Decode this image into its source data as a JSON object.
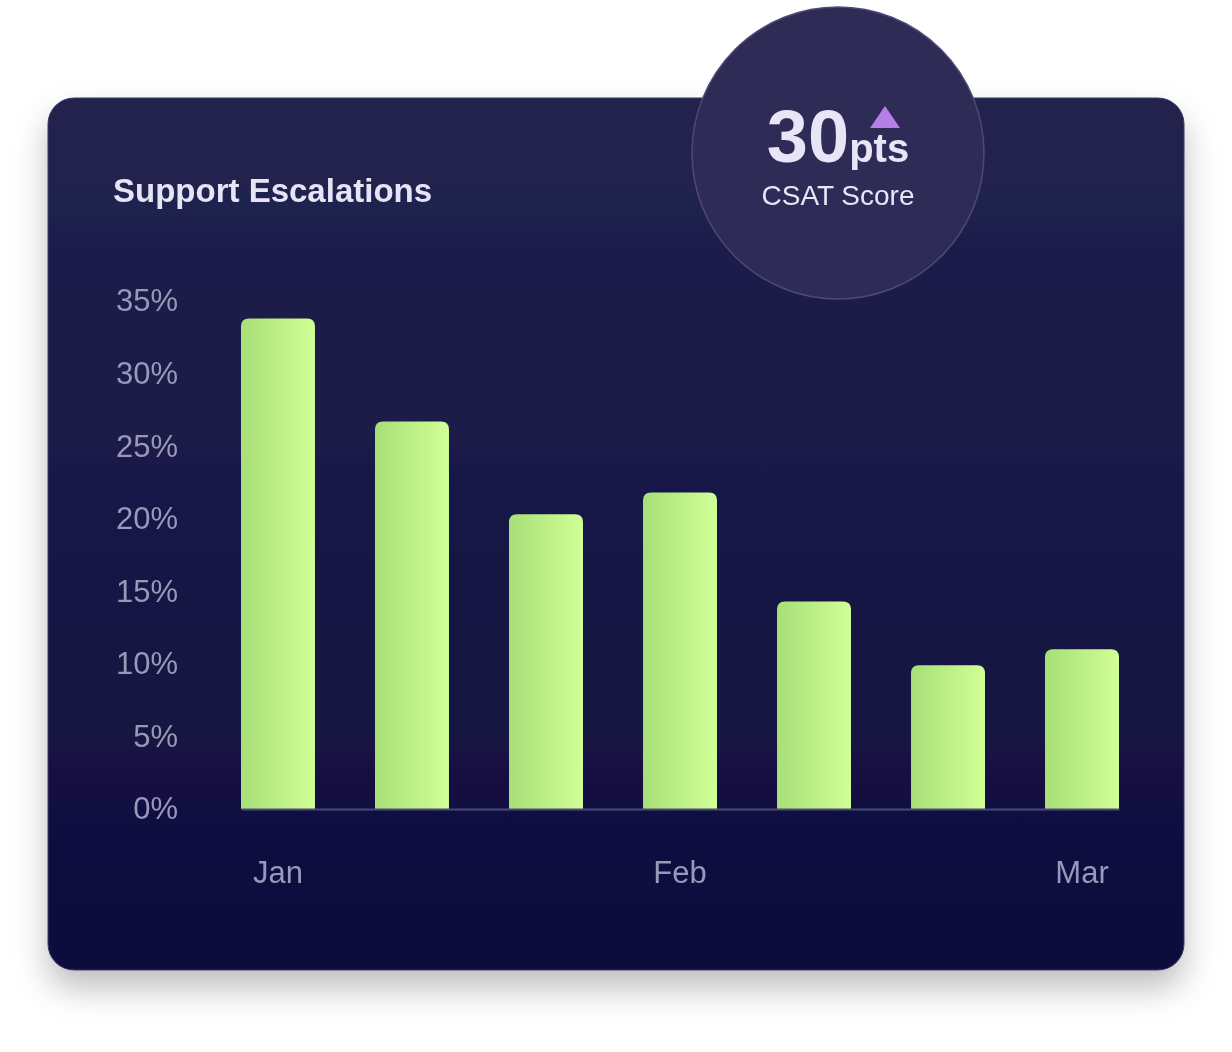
{
  "chart_data": {
    "type": "bar",
    "title": "Support Escalations",
    "categories": [
      "Jan",
      null,
      null,
      "Feb",
      null,
      null,
      "Mar"
    ],
    "values": [
      33.8,
      26.7,
      20.3,
      21.8,
      14.3,
      9.9,
      11.0
    ],
    "color": "#a8df78",
    "ylim": [
      0,
      35
    ],
    "yticks": [
      {
        "value": 0,
        "label": "0%"
      },
      {
        "value": 5,
        "label": "5%"
      },
      {
        "value": 10,
        "label": "10%"
      },
      {
        "value": 15,
        "label": "15%"
      },
      {
        "value": 20,
        "label": "20%"
      },
      {
        "value": 25,
        "label": "25%"
      },
      {
        "value": 30,
        "label": "30%"
      },
      {
        "value": 35,
        "label": "35%"
      }
    ],
    "annotations": [
      "30",
      "pts",
      "CSAT Score"
    ]
  }
}
